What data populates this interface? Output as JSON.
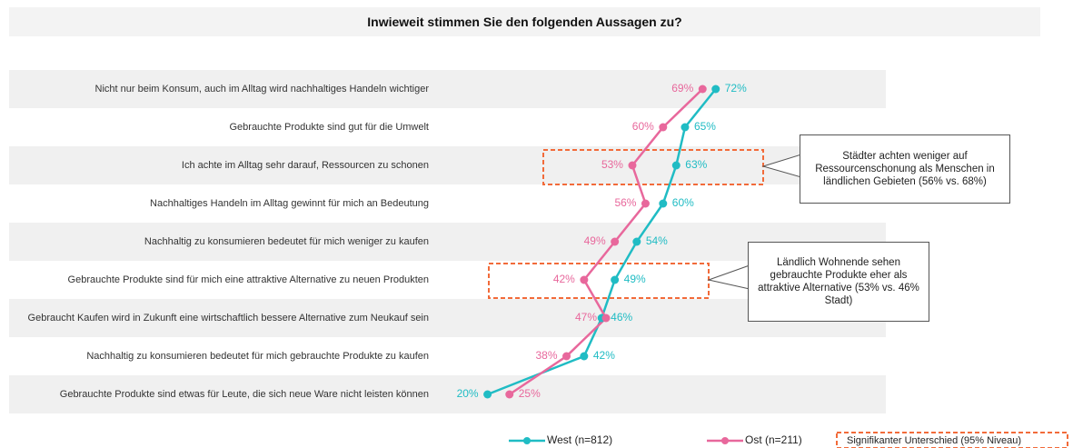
{
  "chart_data": {
    "type": "line",
    "title": "Inwieweit stimmen Sie den folgenden Aussagen zu?",
    "categories": [
      "Nicht nur beim Konsum, auch im Alltag wird nachhaltiges Handeln wichtiger",
      "Gebrauchte Produkte sind gut für die Umwelt",
      "Ich achte im Alltag sehr darauf, Ressourcen zu schonen",
      "Nachhaltiges Handeln im Alltag gewinnt für mich an Bedeutung",
      "Nachhaltig zu konsumieren bedeutet für mich weniger zu kaufen",
      "Gebrauchte Produkte sind für mich eine attraktive Alternative zu neuen Produkten",
      "Gebraucht Kaufen wird in Zukunft eine wirtschaftlich bessere Alternative zum Neukauf sein",
      "Nachhaltig zu konsumieren bedeutet für mich gebrauchte Produkte zu kaufen",
      "Gebrauchte Produkte sind etwas für Leute, die sich neue Ware nicht leisten können"
    ],
    "series": [
      {
        "name": "West (n=812)",
        "color": "#20bcc4",
        "values": [
          72,
          65,
          63,
          60,
          54,
          49,
          46,
          42,
          20
        ],
        "value_labels": [
          "72%",
          "65%",
          "63%",
          "60%",
          "54%",
          "49%",
          "46%",
          "42%",
          "20%"
        ]
      },
      {
        "name": "Ost (n=211)",
        "color": "#e8689c",
        "values": [
          69,
          60,
          53,
          56,
          49,
          42,
          47,
          38,
          25
        ],
        "value_labels": [
          "69%",
          "60%",
          "53%",
          "56%",
          "49%",
          "42%",
          "47%",
          "38%",
          "25%"
        ]
      }
    ],
    "annotations": [
      "Städter achten weniger auf Ressourcenschonung als Menschen in ländlichen Gebieten (56% vs. 68%)",
      "Ländlich Wohnende sehen gebrauchte Produkte eher als attraktive Alternative (53% vs. 46% Stadt)"
    ],
    "significance_label": "Signifikanter Unterschied (95% Niveau)"
  }
}
